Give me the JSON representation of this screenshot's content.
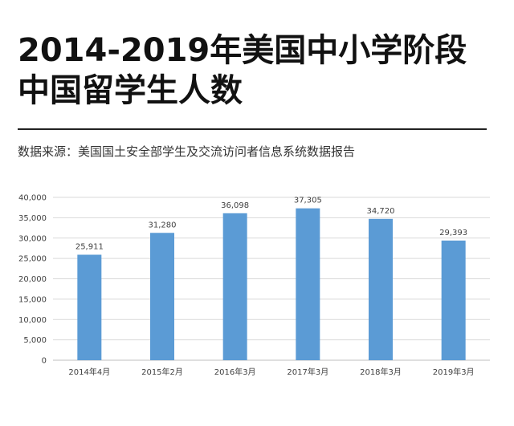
{
  "header": {
    "title_line1": "2014-2019年美国中小学阶段",
    "title_line2": "中国留学生人数",
    "source": "数据来源：美国国土安全部学生及交流访问者信息系统数据报告"
  },
  "colors": {
    "bar": "#5b9bd5",
    "grid": "#d9d9d9",
    "axis": "#bfbfbf",
    "label": "#404040"
  },
  "chart_data": {
    "type": "bar",
    "categories": [
      "2014年4月",
      "2015年2月",
      "2016年3月",
      "2017年3月",
      "2018年3月",
      "2019年3月"
    ],
    "values": [
      25911,
      31280,
      36098,
      37305,
      34720,
      29393
    ],
    "data_labels": [
      "25,911",
      "31,280",
      "36,098",
      "37,305",
      "34,720",
      "29,393"
    ],
    "y_ticks": [
      0,
      5000,
      10000,
      15000,
      20000,
      25000,
      30000,
      35000,
      40000
    ],
    "y_tick_labels": [
      "0",
      "5,000",
      "10,000",
      "15,000",
      "20,000",
      "25,000",
      "30,000",
      "35,000",
      "40,000"
    ],
    "ylim": [
      0,
      40000
    ],
    "grid": true,
    "title": "",
    "xlabel": "",
    "ylabel": ""
  }
}
